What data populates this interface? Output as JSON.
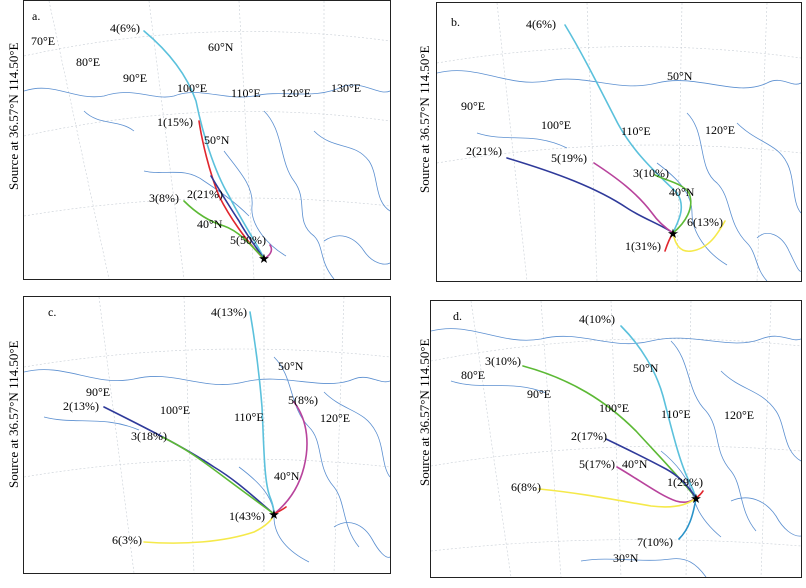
{
  "side_label": "Source at 36.57°N  114.50°E",
  "colors": {
    "cluster1": "#e0262e",
    "cluster2": "#2f3a9a",
    "cluster3": "#5cb935",
    "cluster4": "#5bc1dc",
    "cluster5": "#b8439c",
    "cluster6": "#f5e94a",
    "cluster7": "#2a93c9",
    "coast": "#5b8fd0",
    "grid": "#c9cfd6"
  },
  "source_marker": "star",
  "panels": [
    {
      "label": "a.",
      "coords": [
        "70°E",
        "80°E",
        "90°E",
        "60°N",
        "100°E",
        "110°E",
        "120°E",
        "130°E",
        "50°N",
        "40°N"
      ],
      "clusters": [
        {
          "label": "4(6%)",
          "color": "cluster4"
        },
        {
          "label": "1(15%)",
          "color": "cluster1"
        },
        {
          "label": "3(8%)",
          "color": "cluster3"
        },
        {
          "label": "2(21%)",
          "color": "cluster2"
        },
        {
          "label": "5(50%)",
          "color": "cluster5"
        }
      ]
    },
    {
      "label": "b.",
      "coords": [
        "50°N",
        "90°E",
        "100°E",
        "110°E",
        "120°E",
        "40°N"
      ],
      "clusters": [
        {
          "label": "4(6%)",
          "color": "cluster4"
        },
        {
          "label": "2(21%)",
          "color": "cluster2"
        },
        {
          "label": "5(19%)",
          "color": "cluster5"
        },
        {
          "label": "3(10%)",
          "color": "cluster3"
        },
        {
          "label": "6(13%)",
          "color": "cluster6"
        },
        {
          "label": "1(31%)",
          "color": "cluster1"
        }
      ]
    },
    {
      "label": "c.",
      "coords": [
        "50°N",
        "90°E",
        "100°E",
        "110°E",
        "120°E",
        "40°N"
      ],
      "clusters": [
        {
          "label": "4(13%)",
          "color": "cluster4"
        },
        {
          "label": "5(8%)",
          "color": "cluster5"
        },
        {
          "label": "2(13%)",
          "color": "cluster2"
        },
        {
          "label": "3(18%)",
          "color": "cluster3"
        },
        {
          "label": "1(43%)",
          "color": "cluster1"
        },
        {
          "label": "6(3%)",
          "color": "cluster6"
        }
      ]
    },
    {
      "label": "d.",
      "coords": [
        "50°N",
        "80°E",
        "90°E",
        "100°E",
        "110°E",
        "120°E",
        "40°N",
        "30°N"
      ],
      "clusters": [
        {
          "label": "4(10%)",
          "color": "cluster4"
        },
        {
          "label": "3(10%)",
          "color": "cluster3"
        },
        {
          "label": "2(17%)",
          "color": "cluster2"
        },
        {
          "label": "5(17%)",
          "color": "cluster5"
        },
        {
          "label": "1(29%)",
          "color": "cluster1"
        },
        {
          "label": "6(8%)",
          "color": "cluster6"
        },
        {
          "label": "7(10%)",
          "color": "cluster7"
        }
      ]
    }
  ]
}
